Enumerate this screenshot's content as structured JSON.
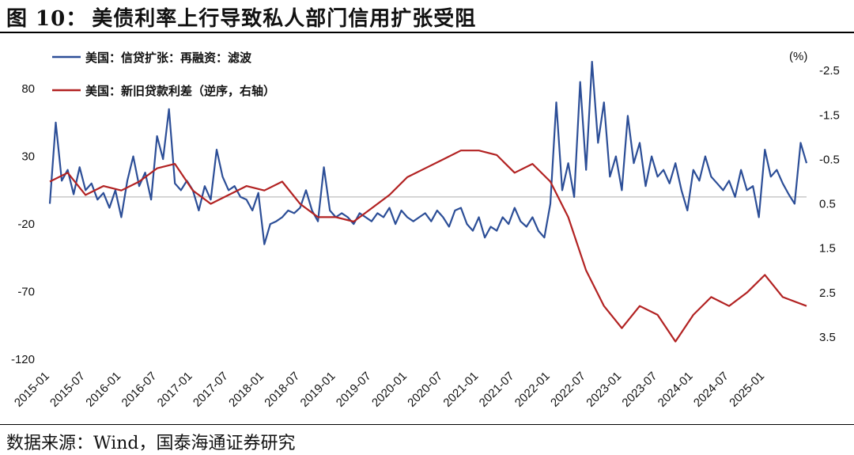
{
  "header": {
    "figure_no": "图 10：",
    "title": "美债利率上行导致私人部门信用扩张受阻"
  },
  "source": "数据来源：Wind，国泰海通证券研究",
  "chart_data": {
    "type": "line",
    "title": "美债利率上行导致私人部门信用扩张受阻",
    "unit_label": "(%)",
    "x_tick_labels": [
      "2015-01",
      "2015-07",
      "2016-01",
      "2016-07",
      "2017-01",
      "2017-07",
      "2018-01",
      "2018-07",
      "2019-01",
      "2019-07",
      "2020-01",
      "2020-07",
      "2021-01",
      "2021-07",
      "2022-01",
      "2022-07",
      "2023-01",
      "2023-07",
      "2024-01",
      "2024-07",
      "2025-01"
    ],
    "x_range": [
      "2015-01",
      "2025-08"
    ],
    "left_axis": {
      "ticks": [
        80,
        30,
        -20,
        -70,
        -120
      ],
      "range": [
        -120,
        100
      ]
    },
    "right_axis": {
      "ticks": [
        -2.5,
        -1.5,
        -0.5,
        0.5,
        1.5,
        2.5,
        3.5
      ],
      "range": [
        -2.7,
        4.0
      ],
      "inverted": true
    },
    "reference_line": {
      "axis": "left",
      "value": 0,
      "color": "#bdbdbd"
    },
    "series": [
      {
        "name": "美国：信贷扩张：再融资：滤波",
        "axis": "left",
        "color": "#2c4e97",
        "points": [
          [
            "2015-01",
            -5
          ],
          [
            "2015-02",
            55
          ],
          [
            "2015-03",
            12
          ],
          [
            "2015-04",
            20
          ],
          [
            "2015-05",
            2
          ],
          [
            "2015-06",
            22
          ],
          [
            "2015-07",
            5
          ],
          [
            "2015-08",
            10
          ],
          [
            "2015-09",
            -2
          ],
          [
            "2015-10",
            3
          ],
          [
            "2015-11",
            -8
          ],
          [
            "2015-12",
            5
          ],
          [
            "2016-01",
            -15
          ],
          [
            "2016-02",
            12
          ],
          [
            "2016-03",
            30
          ],
          [
            "2016-04",
            8
          ],
          [
            "2016-05",
            18
          ],
          [
            "2016-06",
            -2
          ],
          [
            "2016-07",
            45
          ],
          [
            "2016-08",
            28
          ],
          [
            "2016-09",
            65
          ],
          [
            "2016-10",
            10
          ],
          [
            "2016-11",
            5
          ],
          [
            "2016-12",
            12
          ],
          [
            "2017-01",
            5
          ],
          [
            "2017-02",
            -10
          ],
          [
            "2017-03",
            8
          ],
          [
            "2017-04",
            -2
          ],
          [
            "2017-05",
            35
          ],
          [
            "2017-06",
            15
          ],
          [
            "2017-07",
            5
          ],
          [
            "2017-08",
            8
          ],
          [
            "2017-09",
            0
          ],
          [
            "2017-10",
            -2
          ],
          [
            "2017-11",
            -10
          ],
          [
            "2017-12",
            3
          ],
          [
            "2018-01",
            -35
          ],
          [
            "2018-02",
            -20
          ],
          [
            "2018-03",
            -18
          ],
          [
            "2018-04",
            -15
          ],
          [
            "2018-05",
            -10
          ],
          [
            "2018-06",
            -12
          ],
          [
            "2018-07",
            -8
          ],
          [
            "2018-08",
            5
          ],
          [
            "2018-09",
            -10
          ],
          [
            "2018-10",
            -18
          ],
          [
            "2018-11",
            22
          ],
          [
            "2018-12",
            -10
          ],
          [
            "2019-01",
            -15
          ],
          [
            "2019-02",
            -12
          ],
          [
            "2019-03",
            -15
          ],
          [
            "2019-04",
            -20
          ],
          [
            "2019-05",
            -12
          ],
          [
            "2019-06",
            -15
          ],
          [
            "2019-07",
            -18
          ],
          [
            "2019-08",
            -12
          ],
          [
            "2019-09",
            -15
          ],
          [
            "2019-10",
            -8
          ],
          [
            "2019-11",
            -20
          ],
          [
            "2019-12",
            -10
          ],
          [
            "2020-01",
            -15
          ],
          [
            "2020-02",
            -18
          ],
          [
            "2020-03",
            -15
          ],
          [
            "2020-04",
            -12
          ],
          [
            "2020-05",
            -18
          ],
          [
            "2020-06",
            -10
          ],
          [
            "2020-07",
            -15
          ],
          [
            "2020-08",
            -22
          ],
          [
            "2020-09",
            -10
          ],
          [
            "2020-10",
            -8
          ],
          [
            "2020-11",
            -20
          ],
          [
            "2020-12",
            -25
          ],
          [
            "2021-01",
            -15
          ],
          [
            "2021-02",
            -30
          ],
          [
            "2021-03",
            -22
          ],
          [
            "2021-04",
            -25
          ],
          [
            "2021-05",
            -15
          ],
          [
            "2021-06",
            -20
          ],
          [
            "2021-07",
            -8
          ],
          [
            "2021-08",
            -18
          ],
          [
            "2021-09",
            -22
          ],
          [
            "2021-10",
            -15
          ],
          [
            "2021-11",
            -25
          ],
          [
            "2021-12",
            -30
          ],
          [
            "2022-01",
            -5
          ],
          [
            "2022-02",
            70
          ],
          [
            "2022-03",
            5
          ],
          [
            "2022-04",
            25
          ],
          [
            "2022-05",
            0
          ],
          [
            "2022-06",
            85
          ],
          [
            "2022-07",
            20
          ],
          [
            "2022-08",
            100
          ],
          [
            "2022-09",
            40
          ],
          [
            "2022-10",
            70
          ],
          [
            "2022-11",
            15
          ],
          [
            "2022-12",
            30
          ],
          [
            "2023-01",
            5
          ],
          [
            "2023-02",
            60
          ],
          [
            "2023-03",
            25
          ],
          [
            "2023-04",
            40
          ],
          [
            "2023-05",
            8
          ],
          [
            "2023-06",
            30
          ],
          [
            "2023-07",
            15
          ],
          [
            "2023-08",
            20
          ],
          [
            "2023-09",
            10
          ],
          [
            "2023-10",
            25
          ],
          [
            "2023-11",
            5
          ],
          [
            "2023-12",
            -10
          ],
          [
            "2024-01",
            20
          ],
          [
            "2024-02",
            12
          ],
          [
            "2024-03",
            30
          ],
          [
            "2024-04",
            15
          ],
          [
            "2024-05",
            10
          ],
          [
            "2024-06",
            5
          ],
          [
            "2024-07",
            12
          ],
          [
            "2024-08",
            0
          ],
          [
            "2024-09",
            20
          ],
          [
            "2024-10",
            5
          ],
          [
            "2024-11",
            8
          ],
          [
            "2024-12",
            -15
          ],
          [
            "2025-01",
            35
          ],
          [
            "2025-02",
            15
          ],
          [
            "2025-03",
            20
          ],
          [
            "2025-04",
            10
          ],
          [
            "2025-05",
            2
          ],
          [
            "2025-06",
            -5
          ],
          [
            "2025-07",
            40
          ],
          [
            "2025-08",
            25
          ]
        ]
      },
      {
        "name": "美国：新旧贷款利差（逆序，右轴）",
        "axis": "right",
        "color": "#b22222",
        "points": [
          [
            "2015-01",
            0.0
          ],
          [
            "2015-04",
            -0.2
          ],
          [
            "2015-07",
            0.3
          ],
          [
            "2015-10",
            0.1
          ],
          [
            "2016-01",
            0.2
          ],
          [
            "2016-04",
            0.0
          ],
          [
            "2016-07",
            -0.3
          ],
          [
            "2016-10",
            -0.4
          ],
          [
            "2017-01",
            0.2
          ],
          [
            "2017-04",
            0.5
          ],
          [
            "2017-07",
            0.3
          ],
          [
            "2017-10",
            0.1
          ],
          [
            "2018-01",
            0.2
          ],
          [
            "2018-04",
            0.0
          ],
          [
            "2018-07",
            0.5
          ],
          [
            "2018-10",
            0.8
          ],
          [
            "2019-01",
            0.8
          ],
          [
            "2019-04",
            0.9
          ],
          [
            "2019-07",
            0.6
          ],
          [
            "2019-10",
            0.3
          ],
          [
            "2020-01",
            -0.1
          ],
          [
            "2020-04",
            -0.3
          ],
          [
            "2020-07",
            -0.5
          ],
          [
            "2020-10",
            -0.7
          ],
          [
            "2021-01",
            -0.7
          ],
          [
            "2021-04",
            -0.6
          ],
          [
            "2021-07",
            -0.2
          ],
          [
            "2021-10",
            -0.4
          ],
          [
            "2022-01",
            0.0
          ],
          [
            "2022-04",
            0.8
          ],
          [
            "2022-07",
            2.0
          ],
          [
            "2022-10",
            2.8
          ],
          [
            "2023-01",
            3.3
          ],
          [
            "2023-04",
            2.8
          ],
          [
            "2023-07",
            3.0
          ],
          [
            "2023-10",
            3.6
          ],
          [
            "2024-01",
            3.0
          ],
          [
            "2024-04",
            2.6
          ],
          [
            "2024-07",
            2.8
          ],
          [
            "2024-10",
            2.5
          ],
          [
            "2025-01",
            2.1
          ],
          [
            "2025-04",
            2.6
          ],
          [
            "2025-08",
            2.8
          ]
        ]
      }
    ]
  }
}
